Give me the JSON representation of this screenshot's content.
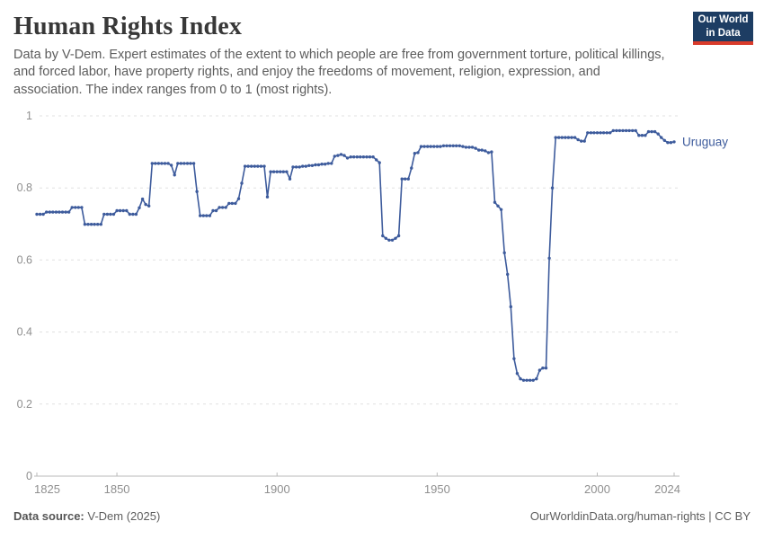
{
  "header": {
    "title": "Human Rights Index",
    "subtitle": "Data by V-Dem. Expert estimates of the extent to which people are free from government torture, political killings, and forced labor, have property rights, and enjoy the freedoms of movement, religion, expression, and association. The index ranges from 0 to 1 (most rights).",
    "logo": {
      "line1": "Our World",
      "line2": "in Data",
      "bg_color": "#1d3d63",
      "accent_color": "#d93b2b"
    }
  },
  "chart_data": {
    "type": "line",
    "title": "Human Rights Index",
    "xlabel": "",
    "ylabel": "",
    "x_range": [
      1825,
      2024
    ],
    "ylim": [
      0,
      1
    ],
    "x_ticks": [
      1825,
      1850,
      1900,
      1950,
      2000,
      2024
    ],
    "y_ticks": [
      0,
      0.2,
      0.4,
      0.6,
      0.8,
      1
    ],
    "grid": "horizontal-dashed",
    "legend_position": "end-of-line-label",
    "marker_style": "dots-on-line",
    "series": [
      {
        "name": "Uruguay",
        "color": "#3d5b9c",
        "x_start": 1825,
        "x_step": 1,
        "values": [
          0.727,
          0.727,
          0.727,
          0.733,
          0.733,
          0.733,
          0.733,
          0.733,
          0.733,
          0.733,
          0.733,
          0.746,
          0.746,
          0.746,
          0.746,
          0.699,
          0.699,
          0.699,
          0.699,
          0.699,
          0.699,
          0.727,
          0.727,
          0.727,
          0.727,
          0.737,
          0.737,
          0.737,
          0.737,
          0.727,
          0.727,
          0.727,
          0.745,
          0.769,
          0.754,
          0.75,
          0.868,
          0.868,
          0.868,
          0.868,
          0.868,
          0.868,
          0.863,
          0.836,
          0.868,
          0.868,
          0.868,
          0.868,
          0.868,
          0.868,
          0.79,
          0.723,
          0.723,
          0.723,
          0.723,
          0.737,
          0.737,
          0.746,
          0.746,
          0.746,
          0.757,
          0.757,
          0.757,
          0.77,
          0.813,
          0.86,
          0.86,
          0.86,
          0.86,
          0.86,
          0.86,
          0.86,
          0.775,
          0.845,
          0.845,
          0.845,
          0.845,
          0.845,
          0.845,
          0.825,
          0.858,
          0.858,
          0.858,
          0.86,
          0.86,
          0.862,
          0.862,
          0.864,
          0.864,
          0.866,
          0.866,
          0.868,
          0.868,
          0.888,
          0.89,
          0.893,
          0.89,
          0.883,
          0.886,
          0.886,
          0.886,
          0.886,
          0.886,
          0.886,
          0.886,
          0.886,
          0.878,
          0.87,
          0.667,
          0.66,
          0.655,
          0.655,
          0.66,
          0.667,
          0.825,
          0.825,
          0.825,
          0.855,
          0.896,
          0.898,
          0.915,
          0.915,
          0.915,
          0.915,
          0.915,
          0.915,
          0.915,
          0.917,
          0.917,
          0.917,
          0.917,
          0.917,
          0.917,
          0.915,
          0.913,
          0.913,
          0.913,
          0.91,
          0.905,
          0.905,
          0.903,
          0.898,
          0.9,
          0.76,
          0.75,
          0.74,
          0.62,
          0.56,
          0.47,
          0.326,
          0.285,
          0.27,
          0.266,
          0.266,
          0.266,
          0.266,
          0.27,
          0.294,
          0.3,
          0.3,
          0.605,
          0.8,
          0.94,
          0.94,
          0.94,
          0.94,
          0.94,
          0.94,
          0.94,
          0.934,
          0.93,
          0.93,
          0.953,
          0.953,
          0.953,
          0.953,
          0.953,
          0.953,
          0.953,
          0.953,
          0.959,
          0.959,
          0.959,
          0.959,
          0.959,
          0.959,
          0.959,
          0.959,
          0.946,
          0.946,
          0.946,
          0.956,
          0.956,
          0.956,
          0.95,
          0.94,
          0.932,
          0.926,
          0.926,
          0.928
        ]
      }
    ]
  },
  "footer": {
    "source_label": "Data source:",
    "source_value": "V-Dem (2025)",
    "credit": "OurWorldinData.org/human-rights | CC BY"
  },
  "colors": {
    "line": "#3d5b9c",
    "gridline": "#e0e0e0",
    "axis": "#bababa",
    "tick_text": "#8f8f8f",
    "title_text": "#383838",
    "subtitle_text": "#5c5c5c"
  }
}
